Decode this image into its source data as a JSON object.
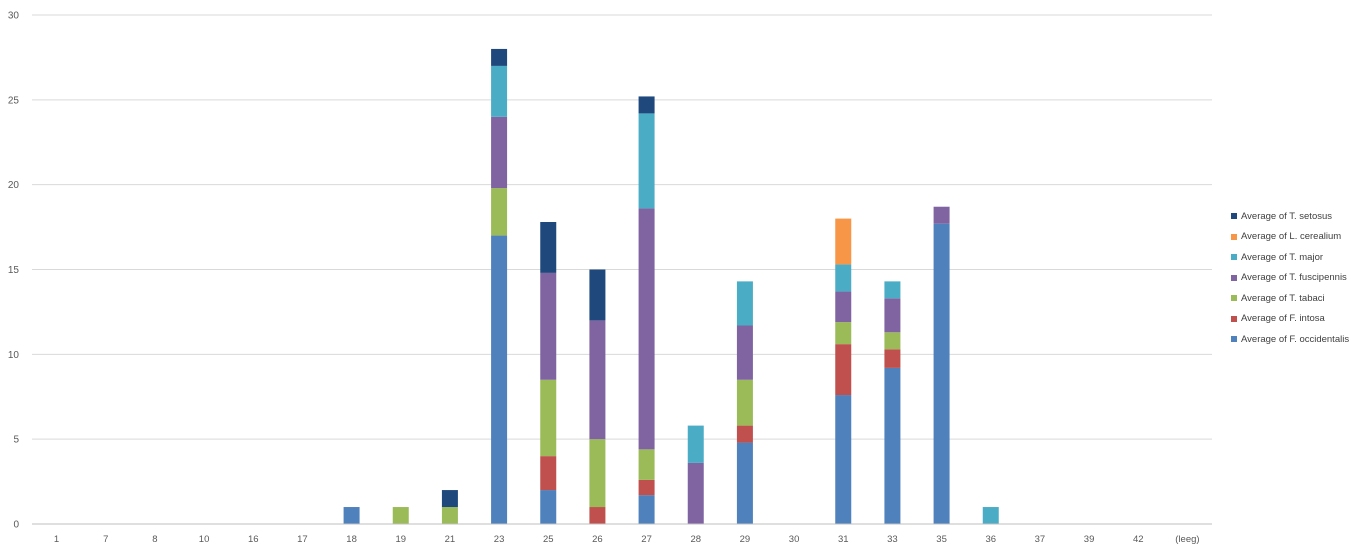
{
  "chart_data": {
    "type": "bar",
    "stacked": true,
    "title": "",
    "xlabel": "",
    "ylabel": "",
    "ylim": [
      0,
      30
    ],
    "yticks": [
      0,
      5,
      10,
      15,
      20,
      25,
      30
    ],
    "grid": true,
    "legend_position": "right",
    "categories": [
      "1",
      "7",
      "8",
      "10",
      "16",
      "17",
      "18",
      "19",
      "21",
      "23",
      "25",
      "26",
      "27",
      "28",
      "29",
      "30",
      "31",
      "33",
      "35",
      "36",
      "37",
      "39",
      "42",
      "(leeg)"
    ],
    "series": [
      {
        "name": "Average of F. occidentalis",
        "color": "#4F81BD",
        "values": [
          0,
          0,
          0,
          0,
          0,
          0,
          1,
          0,
          0,
          17,
          2,
          0,
          1.7,
          0,
          4.8,
          0,
          7.6,
          9.2,
          17.7,
          0,
          0,
          0,
          0,
          0
        ]
      },
      {
        "name": "Average of F. intosa",
        "color": "#C0504D",
        "values": [
          0,
          0,
          0,
          0,
          0,
          0,
          0,
          0,
          0,
          0,
          2,
          1,
          0.9,
          0,
          1,
          0,
          3,
          1.1,
          0,
          0,
          0,
          0,
          0,
          0
        ]
      },
      {
        "name": "Average of T. tabaci",
        "color": "#9BBB59",
        "values": [
          0,
          0,
          0,
          0,
          0,
          0,
          0,
          1,
          1,
          2.8,
          4.5,
          4,
          1.8,
          0,
          2.7,
          0,
          1.3,
          1,
          0,
          0,
          0,
          0,
          0,
          0
        ]
      },
      {
        "name": "Average of T. fuscipennis",
        "color": "#8064A2",
        "values": [
          0,
          0,
          0,
          0,
          0,
          0,
          0,
          0,
          0,
          4.2,
          6.3,
          7,
          14.2,
          3.6,
          3.2,
          0,
          1.8,
          2,
          1,
          0,
          0,
          0,
          0,
          0
        ]
      },
      {
        "name": "Average of T. major",
        "color": "#4BACC6",
        "values": [
          0,
          0,
          0,
          0,
          0,
          0,
          0,
          0,
          0,
          3,
          0,
          0,
          5.6,
          2.2,
          2.6,
          0,
          1.6,
          1,
          0,
          1,
          0,
          0,
          0,
          0
        ]
      },
      {
        "name": "Average of L. cerealium",
        "color": "#F79646",
        "values": [
          0,
          0,
          0,
          0,
          0,
          0,
          0,
          0,
          0,
          0,
          0,
          0,
          0,
          0,
          0,
          0,
          2.7,
          0,
          0,
          0,
          0,
          0,
          0,
          0
        ]
      },
      {
        "name": "Average of T. setosus",
        "color": "#1F497D",
        "values": [
          0,
          0,
          0,
          0,
          0,
          0,
          0,
          0,
          1,
          1,
          3,
          3,
          1,
          0,
          0,
          0,
          0,
          0,
          0,
          0,
          0,
          0,
          0,
          0
        ]
      }
    ]
  }
}
